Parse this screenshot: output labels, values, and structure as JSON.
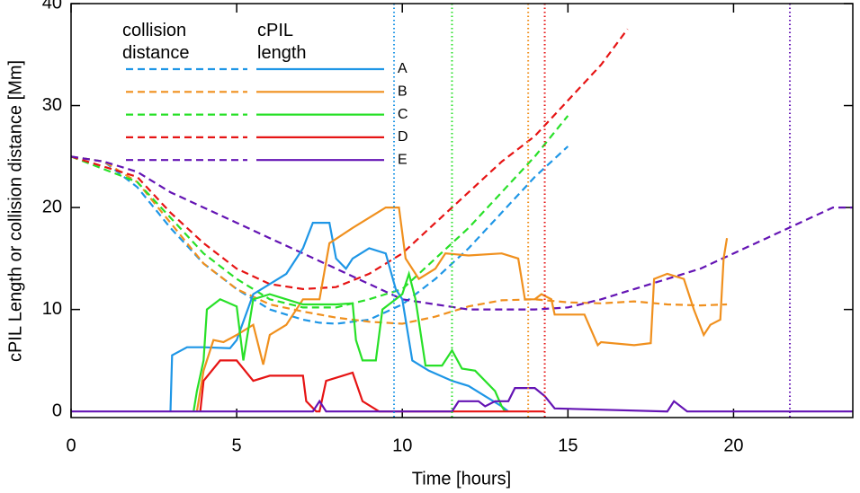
{
  "chart_data": {
    "type": "line",
    "xlabel": "Time [hours]",
    "ylabel": "cPIL Length or collision distance [Mm]",
    "legend_titles": [
      "collision distance",
      "cPIL length"
    ],
    "xlim": [
      0,
      23.6
    ],
    "ylim": [
      -0.6,
      40
    ],
    "xticks": [
      0,
      5,
      10,
      15,
      20
    ],
    "yticks": [
      0,
      10,
      20,
      30,
      40
    ],
    "series": [
      {
        "name": "A",
        "color": "#1e96e6",
        "marker_x": 9.75,
        "distance_x": [
          0,
          1,
          2,
          3,
          4,
          5,
          6,
          7,
          7.5,
          8,
          9,
          10,
          11,
          12,
          13,
          14,
          15
        ],
        "distance_values": [
          25,
          24.5,
          22,
          18,
          14.5,
          12,
          10,
          9,
          8.7,
          8.6,
          9,
          10.5,
          13,
          16,
          19.5,
          23,
          26
        ],
        "length_x": [
          3,
          3.05,
          3.5,
          4,
          4.8,
          5,
          5.5,
          6,
          6.5,
          7,
          7.3,
          7.8,
          8,
          8.3,
          8.5,
          9,
          9.5,
          9.8,
          10,
          10.3,
          10.8,
          11.5,
          12,
          12.5,
          13,
          13.2
        ],
        "length_values": [
          0,
          5.5,
          6.3,
          6.3,
          6.2,
          7,
          11.5,
          12.5,
          13.5,
          16,
          18.5,
          18.5,
          15,
          14,
          15,
          16,
          15.5,
          12,
          11,
          5,
          4,
          3,
          2.5,
          1.5,
          0.5,
          0
        ]
      },
      {
        "name": "B",
        "color": "#f0901e",
        "marker_x": 13.8,
        "distance_x": [
          0,
          1,
          2,
          3,
          4,
          5,
          6,
          7,
          8,
          9,
          10,
          11,
          12,
          13,
          14,
          15,
          16,
          17,
          18,
          19,
          19.8
        ],
        "distance_values": [
          25,
          24.5,
          22.5,
          18.5,
          14.5,
          12,
          10.5,
          9.8,
          9.2,
          8.8,
          8.6,
          9.3,
          10.3,
          10.9,
          11,
          10.7,
          10.6,
          10.8,
          10.5,
          10.4,
          10.5
        ],
        "length_x": [
          3.8,
          4,
          4.3,
          4.6,
          5,
          5.5,
          5.8,
          6,
          6.5,
          7,
          7.5,
          7.8,
          8.5,
          9,
          9.5,
          9.9,
          10.1,
          10.5,
          11,
          11.3,
          12,
          13,
          13.5,
          13.7,
          14,
          14.2,
          14.5,
          14.6,
          15,
          15.5,
          15.9,
          16,
          17,
          17.5,
          17.6,
          18,
          18.5,
          18.8,
          19.1,
          19.3,
          19.6,
          19.7,
          19.8
        ],
        "length_values": [
          0,
          4,
          7,
          6.8,
          7.5,
          8.5,
          4.6,
          7.5,
          8.5,
          11,
          11,
          16.5,
          18,
          19,
          20,
          20,
          15,
          13,
          14,
          15.5,
          15.3,
          15.5,
          15,
          11,
          11,
          11.5,
          11,
          9.5,
          9.5,
          9.5,
          6.5,
          6.8,
          6.5,
          6.7,
          13,
          13.5,
          13,
          10,
          7.5,
          8.5,
          9,
          15,
          17
        ]
      },
      {
        "name": "C",
        "color": "#28e028",
        "marker_x": 11.5,
        "distance_x": [
          0,
          2,
          3,
          4,
          5,
          6,
          7,
          8,
          9,
          10,
          11,
          12,
          13,
          14,
          15
        ],
        "distance_values": [
          25,
          22.5,
          19,
          15.5,
          13,
          11,
          10.2,
          10.2,
          11,
          12,
          15,
          18,
          21.5,
          25,
          29
        ],
        "length_x": [
          3.7,
          3.8,
          4,
          4.1,
          4.5,
          5,
          5.2,
          5.5,
          6,
          6.5,
          7,
          7.5,
          8,
          8.5,
          8.6,
          8.8,
          9.2,
          9.4,
          10,
          10.2,
          10.4,
          10.7,
          11.2,
          11.5,
          11.8,
          12.2,
          12.8,
          13,
          13.1
        ],
        "length_values": [
          0,
          2,
          5,
          10,
          11,
          10.3,
          5,
          11,
          11.5,
          11,
          10.5,
          10.5,
          10.5,
          10.6,
          7,
          5,
          5,
          10,
          11.5,
          13.5,
          11,
          4.5,
          4.5,
          6,
          4.2,
          4,
          2,
          0.5,
          0
        ]
      },
      {
        "name": "D",
        "color": "#e61414",
        "marker_x": 14.3,
        "distance_x": [
          0,
          2,
          3,
          4,
          5,
          6,
          7,
          8,
          9,
          10,
          11,
          12,
          13,
          14,
          15,
          16,
          16.8
        ],
        "distance_values": [
          25,
          23,
          19.5,
          16.5,
          14,
          12.5,
          12,
          12.2,
          13.5,
          15.5,
          18.5,
          21.5,
          24.5,
          27,
          30.5,
          34,
          37.5
        ],
        "length_x": [
          3.9,
          4,
          4.5,
          5,
          5.5,
          6,
          7,
          7.1,
          7.4,
          7.5,
          7.7,
          8.2,
          8.5,
          8.8,
          9.3,
          14.3
        ],
        "length_values": [
          0,
          3,
          5,
          5,
          3,
          3.5,
          3.5,
          1,
          0,
          0,
          3,
          3.5,
          3.8,
          1,
          0,
          0
        ]
      },
      {
        "name": "E",
        "color": "#6414b4",
        "marker_x": 21.7,
        "distance_x": [
          0,
          1,
          2,
          3,
          4,
          5,
          6,
          7,
          8,
          9,
          10,
          11,
          12,
          13,
          14,
          15,
          16,
          17,
          18,
          19,
          20,
          21,
          22,
          23,
          23.6
        ],
        "distance_values": [
          25,
          24.5,
          23.5,
          21.5,
          20,
          18.5,
          17,
          15.5,
          14,
          12.5,
          11,
          10.5,
          10,
          10,
          10,
          10.2,
          11,
          12,
          13,
          14,
          15.5,
          17,
          18.5,
          20,
          20
        ],
        "length_x": [
          0,
          7.3,
          7.5,
          7.7,
          11.5,
          11.7,
          12.3,
          12.5,
          12.8,
          13.2,
          13.4,
          14,
          14.3,
          14.6,
          18,
          18.2,
          18.6,
          23.6
        ],
        "length_values": [
          0,
          0,
          1,
          0,
          0,
          1,
          1,
          0.5,
          1,
          1,
          2.3,
          2.3,
          1.5,
          0.3,
          0,
          1,
          0,
          0
        ]
      }
    ]
  }
}
